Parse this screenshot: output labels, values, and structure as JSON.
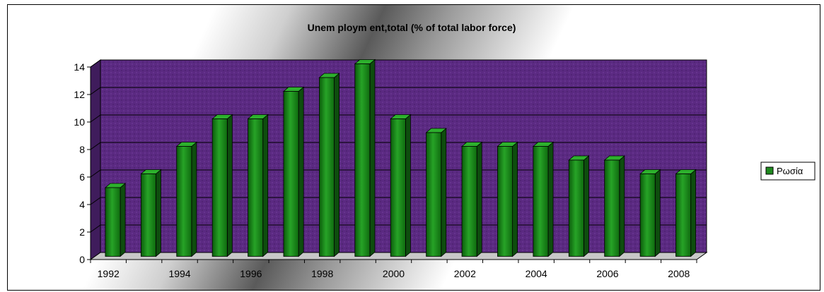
{
  "chart_data": {
    "type": "bar",
    "title": "Unem ploym ent,total (% of total labor force)",
    "categories": [
      "1992",
      "1993",
      "1994",
      "1995",
      "1996",
      "1997",
      "1998",
      "1999",
      "2000",
      "2001",
      "2002",
      "2003",
      "2004",
      "2005",
      "2006",
      "2007",
      "2008"
    ],
    "x_tick_labels": [
      "1992",
      "1994",
      "1996",
      "1998",
      "2000",
      "2002",
      "2004",
      "2006",
      "2008"
    ],
    "y_tick_labels": [
      "0",
      "2",
      "4",
      "6",
      "8",
      "10",
      "12",
      "14"
    ],
    "series": [
      {
        "name": "Ρωσία",
        "values": [
          5,
          6,
          8,
          10,
          10,
          12,
          13,
          14,
          10,
          9,
          8,
          8,
          8,
          7,
          7,
          6,
          6
        ]
      }
    ],
    "ylim": [
      0,
      14
    ],
    "grid": true,
    "legend_position": "right",
    "colors": {
      "bar_front": "#1f8a1f",
      "bar_side": "#0e4d0e",
      "bar_top": "#2db02d",
      "wall": "#5b2a82",
      "floor": "#c8c8c8"
    }
  }
}
